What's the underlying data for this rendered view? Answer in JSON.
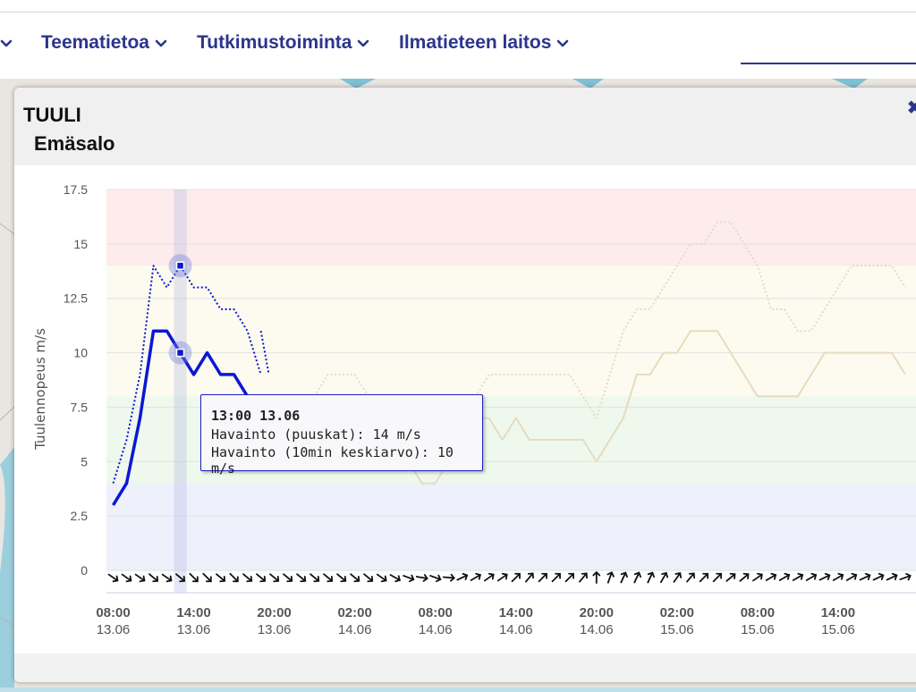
{
  "nav": {
    "items": [
      {
        "label": ""
      },
      {
        "label": "Teematietoa"
      },
      {
        "label": "Tutkimustoiminta"
      },
      {
        "label": "Ilmatieteen laitos"
      }
    ]
  },
  "popup": {
    "title": "TUULI",
    "station": "Emäsalo",
    "close_symbol": "✖"
  },
  "tooltip": {
    "time": "13:00 13.06",
    "gust_line": "Havainto (puuskat): 14 m/s",
    "mean_line": "Havainto (10min keskiarvo): 10 m/s"
  },
  "colors": {
    "observed": "#0a17d6",
    "forecast": "#e5dcc0",
    "band_red": "#fdeceb",
    "band_yellow": "#fdfbef",
    "band_green": "#eff8ec",
    "band_blue": "#eef0fb",
    "nav_text": "#2b358c"
  },
  "chart_data": {
    "type": "line",
    "ylabel": "Tuulennopeus m/s",
    "ylim": [
      0,
      17.5
    ],
    "yticks": [
      "0",
      "2.5",
      "5",
      "7.5",
      "10",
      "12.5",
      "15",
      "17.5"
    ],
    "x_unit": "hour",
    "xticks": [
      {
        "time": "08:00",
        "date": "13.06",
        "h": 0
      },
      {
        "time": "14:00",
        "date": "13.06",
        "h": 6
      },
      {
        "time": "20:00",
        "date": "13.06",
        "h": 12
      },
      {
        "time": "02:00",
        "date": "14.06",
        "h": 18
      },
      {
        "time": "08:00",
        "date": "14.06",
        "h": 24
      },
      {
        "time": "14:00",
        "date": "14.06",
        "h": 30
      },
      {
        "time": "20:00",
        "date": "14.06",
        "h": 36
      },
      {
        "time": "02:00",
        "date": "15.06",
        "h": 42
      },
      {
        "time": "08:00",
        "date": "15.06",
        "h": 48
      },
      {
        "time": "14:00",
        "date": "15.06",
        "h": 54
      }
    ],
    "xlim": [
      -0.5,
      59.8
    ],
    "bands": [
      {
        "from": 0,
        "to": 4,
        "color": "#eef0fb"
      },
      {
        "from": 4,
        "to": 8,
        "color": "#eff8ec"
      },
      {
        "from": 8,
        "to": 14,
        "color": "#fdfbef"
      },
      {
        "from": 14,
        "to": 17.5,
        "color": "#fdeceb"
      }
    ],
    "series": [
      {
        "name": "Havainto (puuskat)",
        "style": "dotted",
        "role": "observed",
        "x": [
          0,
          1,
          2,
          3,
          4,
          5,
          6,
          7,
          8,
          9,
          10,
          11,
          12
        ],
        "y": [
          4,
          6,
          9,
          14,
          13,
          14,
          13,
          13,
          12,
          12,
          11,
          9,
          null
        ]
      },
      {
        "name": "Havainto (10min keskiarvo)",
        "style": "solid",
        "role": "observed",
        "x": [
          0,
          1,
          2,
          3,
          4,
          5,
          6,
          7,
          8,
          9,
          10,
          11
        ],
        "y": [
          3,
          4,
          7,
          11,
          11,
          10,
          9,
          10,
          9,
          9,
          8,
          7
        ]
      },
      {
        "name": "",
        "style": "dotted",
        "role": "forecast",
        "x": [
          12,
          13,
          14,
          15,
          16,
          17,
          18,
          19,
          20,
          21,
          22,
          23,
          24,
          25,
          26,
          27,
          28,
          29,
          30,
          31,
          32,
          33,
          34,
          35,
          36,
          37,
          38,
          39,
          40,
          41,
          42,
          43,
          44,
          45,
          46,
          47,
          48,
          49,
          50,
          51,
          52,
          53,
          54,
          55,
          56,
          57,
          58,
          59
        ],
        "y": [
          8,
          8,
          8,
          8,
          9,
          9,
          9,
          8,
          8,
          7,
          6,
          6,
          5,
          6,
          8,
          8,
          9,
          9,
          9,
          9,
          9,
          9,
          9,
          8,
          7,
          9,
          11,
          12,
          12,
          13,
          14,
          15,
          15,
          16,
          16,
          15,
          14,
          12,
          12,
          11,
          11,
          12,
          13,
          14,
          14,
          14,
          14,
          13
        ]
      },
      {
        "name": "",
        "style": "solid",
        "role": "forecast",
        "x": [
          12,
          13,
          14,
          15,
          16,
          17,
          18,
          19,
          20,
          21,
          22,
          23,
          24,
          25,
          26,
          27,
          28,
          29,
          30,
          31,
          32,
          33,
          34,
          35,
          36,
          37,
          38,
          39,
          40,
          41,
          42,
          43,
          44,
          45,
          46,
          47,
          48,
          49,
          50,
          51,
          52,
          53,
          54,
          55,
          56,
          57,
          58,
          59
        ],
        "y": [
          7,
          7,
          7,
          7,
          7,
          7,
          7,
          6,
          6,
          5,
          5,
          4,
          4,
          5,
          6,
          7,
          7,
          6,
          7,
          6,
          6,
          6,
          6,
          6,
          5,
          6,
          7,
          9,
          9,
          10,
          10,
          11,
          11,
          11,
          10,
          9,
          8,
          8,
          8,
          8,
          9,
          10,
          10,
          10,
          10,
          10,
          10,
          9
        ]
      }
    ],
    "highlight": {
      "x": 5,
      "gust": 14,
      "mean": 10
    },
    "wind_arrows": {
      "x": [
        0,
        1,
        2,
        3,
        4,
        5,
        6,
        7,
        8,
        9,
        10,
        11,
        12,
        13,
        14,
        15,
        16,
        17,
        18,
        19,
        20,
        21,
        22,
        23,
        24,
        25,
        26,
        27,
        28,
        29,
        30,
        31,
        32,
        33,
        34,
        35,
        36,
        37,
        38,
        39,
        40,
        41,
        42,
        43,
        44,
        45,
        46,
        47,
        48,
        49,
        50,
        51,
        52,
        53,
        54,
        55,
        56,
        57,
        58,
        59
      ],
      "dir_deg": [
        125,
        125,
        125,
        130,
        125,
        130,
        135,
        135,
        130,
        135,
        130,
        130,
        130,
        130,
        130,
        130,
        130,
        130,
        130,
        130,
        125,
        120,
        110,
        100,
        110,
        95,
        65,
        60,
        55,
        55,
        45,
        40,
        45,
        45,
        45,
        40,
        0,
        20,
        25,
        25,
        25,
        30,
        35,
        40,
        45,
        45,
        50,
        50,
        55,
        60,
        60,
        60,
        60,
        65,
        60,
        60,
        65,
        65,
        65,
        70
      ]
    }
  }
}
